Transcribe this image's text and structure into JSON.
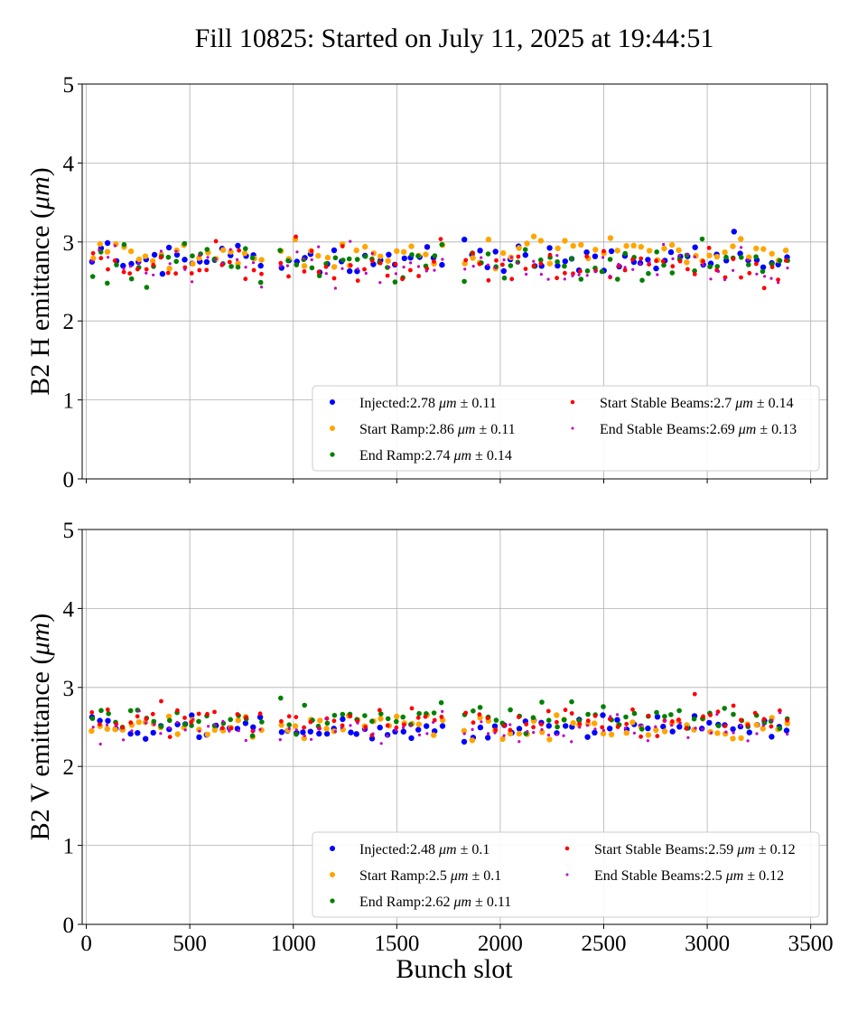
{
  "figure": {
    "title": "Fill 10825: Started on July 11, 2025 at 19:44:51",
    "xlabel": "Bunch slot"
  },
  "chart_data": [
    {
      "type": "scatter",
      "ylabel": "B2 H emittance (μm)",
      "ylabel_prefix": "B2 H emittance (",
      "ylabel_unit": "μm",
      "ylabel_suffix": ")",
      "xlim": [
        -20,
        3580
      ],
      "ylim": [
        0,
        5
      ],
      "x_ticks": [
        "0",
        "500",
        "1000",
        "1500",
        "2000",
        "2500",
        "3000",
        "3500"
      ],
      "show_x_tick_labels": false,
      "y_ticks": [
        "0",
        "1",
        "2",
        "3",
        "4",
        "5"
      ],
      "grid": true,
      "legend_placement": "lower-right",
      "series": [
        {
          "name": "Injected",
          "mean": 2.78,
          "std": 0.11,
          "color": "#0000ff",
          "marker": "large"
        },
        {
          "name": "Start Ramp",
          "mean": 2.86,
          "std": 0.11,
          "color": "#ffa500",
          "marker": "large"
        },
        {
          "name": "End Ramp",
          "mean": 2.74,
          "std": 0.14,
          "color": "#008000",
          "marker": "medium"
        },
        {
          "name": "Start Stable Beams",
          "mean": 2.7,
          "std": 0.14,
          "color": "#ff0000",
          "marker": "small"
        },
        {
          "name": "End Stable Beams",
          "mean": 2.69,
          "std": 0.13,
          "color": "#bf00bf",
          "marker": "tiny"
        }
      ],
      "bunch_trains": [
        [
          30,
          860
        ],
        [
          940,
          1720
        ],
        [
          1830,
          3420
        ]
      ],
      "slot_step": 37,
      "seed": 7
    },
    {
      "type": "scatter",
      "ylabel": "B2 V emittance (μm)",
      "ylabel_prefix": "B2 V emittance (",
      "ylabel_unit": "μm",
      "ylabel_suffix": ")",
      "xlim": [
        -20,
        3580
      ],
      "ylim": [
        0,
        5
      ],
      "x_ticks": [
        "0",
        "500",
        "1000",
        "1500",
        "2000",
        "2500",
        "3000",
        "3500"
      ],
      "show_x_tick_labels": true,
      "y_ticks": [
        "0",
        "1",
        "2",
        "3",
        "4",
        "5"
      ],
      "grid": true,
      "legend_placement": "lower-right",
      "series": [
        {
          "name": "Injected",
          "mean": 2.48,
          "std": 0.1,
          "color": "#0000ff",
          "marker": "large"
        },
        {
          "name": "Start Ramp",
          "mean": 2.5,
          "std": 0.1,
          "color": "#ffa500",
          "marker": "large"
        },
        {
          "name": "End Ramp",
          "mean": 2.62,
          "std": 0.11,
          "color": "#008000",
          "marker": "medium"
        },
        {
          "name": "Start Stable Beams",
          "mean": 2.59,
          "std": 0.12,
          "color": "#ff0000",
          "marker": "small"
        },
        {
          "name": "End Stable Beams",
          "mean": 2.5,
          "std": 0.12,
          "color": "#bf00bf",
          "marker": "tiny"
        }
      ],
      "bunch_trains": [
        [
          30,
          860
        ],
        [
          940,
          1720
        ],
        [
          1830,
          3420
        ]
      ],
      "slot_step": 37,
      "seed": 19
    }
  ],
  "legend_format": {
    "unit": "μm",
    "pm": "±"
  }
}
